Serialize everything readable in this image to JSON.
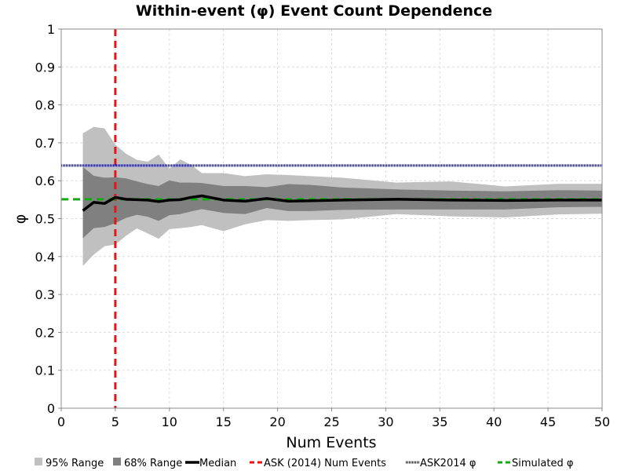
{
  "chart_data": {
    "type": "area",
    "title": "Within-event (φ) Event Count Dependence",
    "xlabel": "Num Events",
    "ylabel": "φ",
    "xlim": [
      0,
      50
    ],
    "ylim": [
      0,
      1
    ],
    "xticks": [
      0,
      5,
      10,
      15,
      20,
      25,
      30,
      35,
      40,
      45,
      50
    ],
    "yticks": [
      0,
      0.1,
      0.2,
      0.3,
      0.4,
      0.5,
      0.6,
      0.7,
      0.8,
      0.9,
      1
    ],
    "xtick_labels": [
      "0",
      "5",
      "10",
      "15",
      "20",
      "25",
      "30",
      "35",
      "40",
      "45",
      "50"
    ],
    "ytick_labels": [
      "0",
      "0.1",
      "0.2",
      "0.3",
      "0.4",
      "0.5",
      "0.6",
      "0.7",
      "0.8",
      "0.9",
      "1"
    ],
    "grid": true,
    "legend_position": "bottom",
    "x": [
      2,
      3,
      4,
      5,
      6,
      7,
      8,
      9,
      10,
      11,
      12,
      13,
      15,
      17,
      19,
      21,
      23,
      26,
      31,
      36,
      41,
      46,
      50
    ],
    "series": [
      {
        "name": "95% Range",
        "kind": "band",
        "color": "#c0c0c0",
        "upper": [
          0.725,
          0.742,
          0.738,
          0.695,
          0.671,
          0.655,
          0.65,
          0.669,
          0.632,
          0.656,
          0.642,
          0.62,
          0.62,
          0.612,
          0.617,
          0.615,
          0.612,
          0.608,
          0.595,
          0.598,
          0.585,
          0.592,
          0.592
        ],
        "lower": [
          0.375,
          0.405,
          0.427,
          0.432,
          0.455,
          0.474,
          0.461,
          0.447,
          0.472,
          0.475,
          0.478,
          0.483,
          0.467,
          0.485,
          0.496,
          0.494,
          0.496,
          0.498,
          0.512,
          0.506,
          0.503,
          0.511,
          0.513
        ]
      },
      {
        "name": "68% Range",
        "kind": "band",
        "color": "#808080",
        "upper": [
          0.636,
          0.613,
          0.608,
          0.609,
          0.606,
          0.598,
          0.591,
          0.586,
          0.601,
          0.595,
          0.595,
          0.594,
          0.586,
          0.586,
          0.583,
          0.591,
          0.589,
          0.582,
          0.577,
          0.574,
          0.572,
          0.575,
          0.574
        ],
        "lower": [
          0.448,
          0.475,
          0.478,
          0.488,
          0.502,
          0.51,
          0.505,
          0.494,
          0.509,
          0.512,
          0.519,
          0.525,
          0.515,
          0.512,
          0.528,
          0.52,
          0.52,
          0.523,
          0.524,
          0.524,
          0.524,
          0.53,
          0.531
        ]
      },
      {
        "name": "Median",
        "kind": "line",
        "color": "#000000",
        "values": [
          0.521,
          0.543,
          0.54,
          0.556,
          0.551,
          0.55,
          0.549,
          0.545,
          0.549,
          0.55,
          0.556,
          0.56,
          0.549,
          0.546,
          0.553,
          0.546,
          0.547,
          0.549,
          0.551,
          0.549,
          0.548,
          0.549,
          0.549
        ]
      },
      {
        "name": "ASK (2014) Num Events",
        "kind": "vline",
        "color": "#ee1111",
        "x": 5
      },
      {
        "name": "ASK2014 φ",
        "kind": "hline",
        "color": "#000080",
        "y": 0.64
      },
      {
        "name": "Simulated φ",
        "kind": "hline",
        "color": "#11aa11",
        "y": 0.551
      }
    ]
  }
}
